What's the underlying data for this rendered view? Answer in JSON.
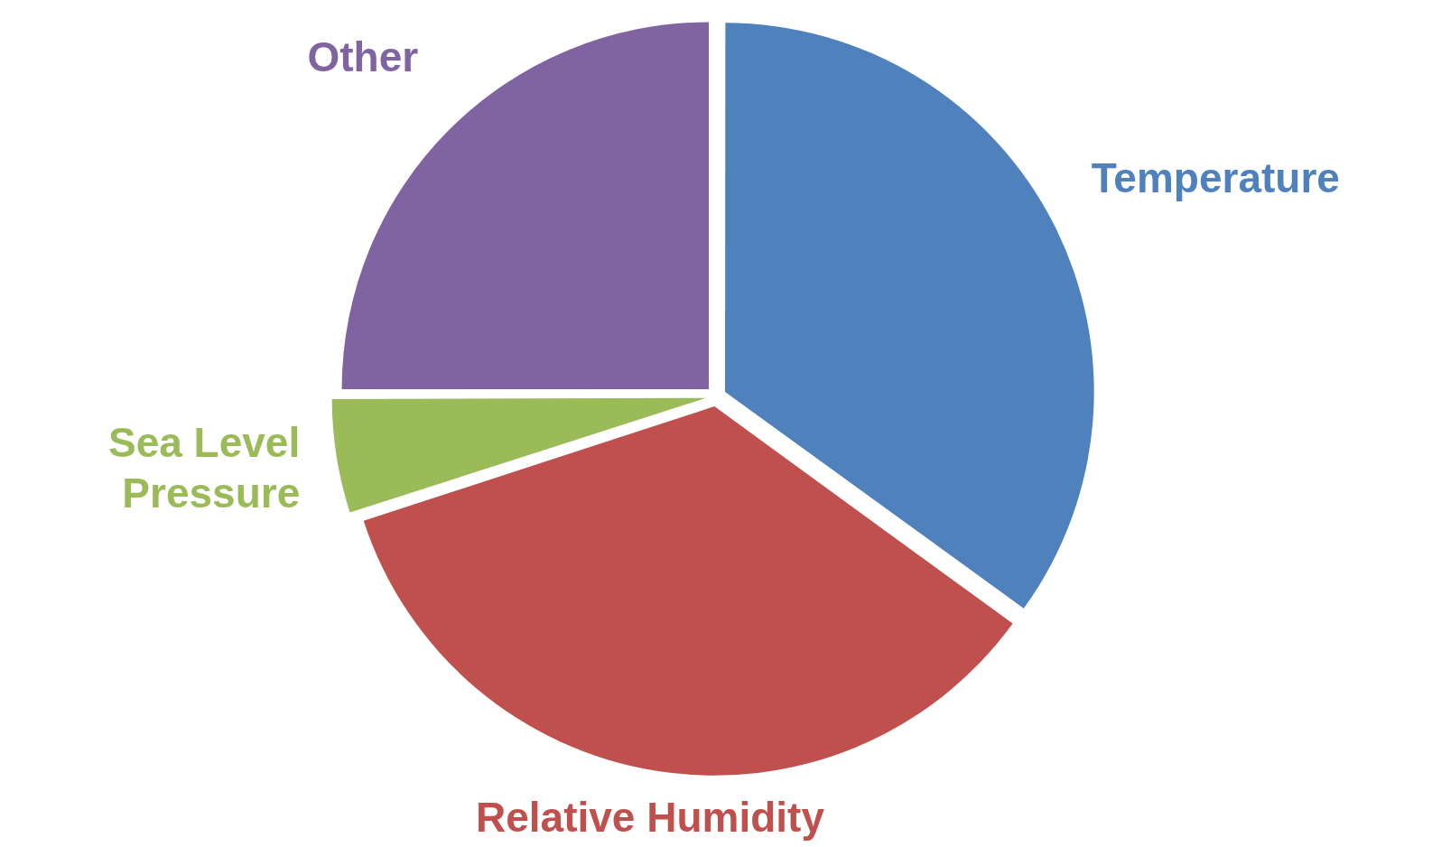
{
  "chart_data": {
    "type": "pie",
    "categories": [
      "Temperature",
      "Relative Humidity",
      "Sea Level Pressure",
      "Other"
    ],
    "values": [
      35,
      35,
      5,
      25
    ],
    "colors": [
      "#4f81bd",
      "#c0504d",
      "#9bbb59",
      "#8064a2"
    ],
    "legend": false
  }
}
